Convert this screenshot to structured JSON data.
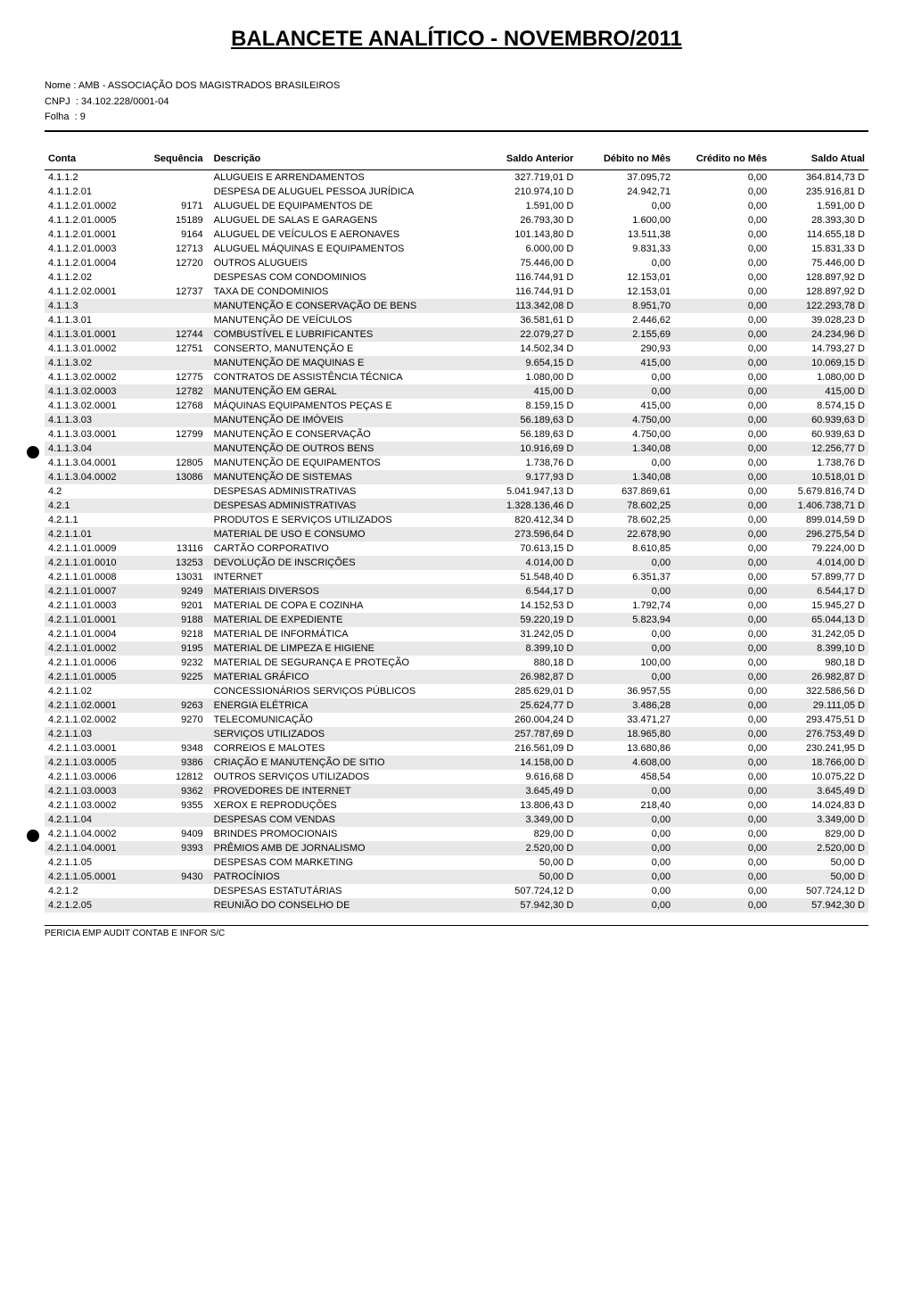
{
  "title": "BALANCETE ANALÍTICO - NOVEMBRO/2011",
  "header": {
    "nome_label": "Nome",
    "nome_value": "AMB - ASSOCIAÇÃO DOS MAGISTRADOS BRASILEIROS",
    "cnpj_label": "CNPJ",
    "cnpj_value": "34.102.228/0001-04",
    "folha_label": "Folha",
    "folha_value": "9"
  },
  "columns": {
    "conta": "Conta",
    "sequencia": "Sequência",
    "descricao": "Descrição",
    "saldo_anterior": "Saldo Anterior",
    "debito": "Débito no Mês",
    "credito": "Crédito no Mês",
    "saldo_atual": "Saldo Atual"
  },
  "rows": [
    {
      "conta": "4.1.1.2",
      "seq": "",
      "desc": "ALUGUEIS E ARRENDAMENTOS",
      "sa": "327.719,01 D",
      "deb": "37.095,72",
      "cred": "0,00",
      "sat": "364.814,73 D",
      "shaded": false
    },
    {
      "conta": "4.1.1.2.01",
      "seq": "",
      "desc": "DESPESA DE ALUGUEL PESSOA JURÍDICA",
      "sa": "210.974,10 D",
      "deb": "24.942,71",
      "cred": "0,00",
      "sat": "235.916,81 D",
      "shaded": false
    },
    {
      "conta": "4.1.1.2.01.0002",
      "seq": "9171",
      "desc": "ALUGUEL DE EQUIPAMENTOS DE",
      "sa": "1.591,00 D",
      "deb": "0,00",
      "cred": "0,00",
      "sat": "1.591,00 D",
      "shaded": false
    },
    {
      "conta": "4.1.1.2.01.0005",
      "seq": "15189",
      "desc": "ALUGUEL DE SALAS E GARAGENS",
      "sa": "26.793,30 D",
      "deb": "1.600,00",
      "cred": "0,00",
      "sat": "28.393,30 D",
      "shaded": false
    },
    {
      "conta": "4.1.1.2.01.0001",
      "seq": "9164",
      "desc": "ALUGUEL DE VEÍCULOS E AERONAVES",
      "sa": "101.143,80 D",
      "deb": "13.511,38",
      "cred": "0,00",
      "sat": "114.655,18 D",
      "shaded": false
    },
    {
      "conta": "4.1.1.2.01.0003",
      "seq": "12713",
      "desc": "ALUGUEL MÁQUINAS E EQUIPAMENTOS",
      "sa": "6.000,00 D",
      "deb": "9.831,33",
      "cred": "0,00",
      "sat": "15.831,33 D",
      "shaded": false
    },
    {
      "conta": "4.1.1.2.01.0004",
      "seq": "12720",
      "desc": "OUTROS ALUGUEIS",
      "sa": "75.446,00 D",
      "deb": "0,00",
      "cred": "0,00",
      "sat": "75.446,00 D",
      "shaded": false
    },
    {
      "conta": "4.1.1.2.02",
      "seq": "",
      "desc": "DESPESAS COM CONDOMINIOS",
      "sa": "116.744,91 D",
      "deb": "12.153,01",
      "cred": "0,00",
      "sat": "128.897,92 D",
      "shaded": false
    },
    {
      "conta": "4.1.1.2.02.0001",
      "seq": "12737",
      "desc": "TAXA DE CONDOMINIOS",
      "sa": "116.744,91 D",
      "deb": "12.153,01",
      "cred": "0,00",
      "sat": "128.897,92 D",
      "shaded": false
    },
    {
      "conta": "4.1.1.3",
      "seq": "",
      "desc": "MANUTENÇÃO E CONSERVAÇÃO DE BENS",
      "sa": "113.342,08 D",
      "deb": "8.951,70",
      "cred": "0,00",
      "sat": "122.293,78 D",
      "shaded": true
    },
    {
      "conta": "4.1.1.3.01",
      "seq": "",
      "desc": "MANUTENÇÃO DE VEÍCULOS",
      "sa": "36.581,61 D",
      "deb": "2.446,62",
      "cred": "0,00",
      "sat": "39.028,23 D",
      "shaded": false
    },
    {
      "conta": "4.1.1.3.01.0001",
      "seq": "12744",
      "desc": "COMBUSTÍVEL E LUBRIFICANTES",
      "sa": "22.079,27 D",
      "deb": "2.155,69",
      "cred": "0,00",
      "sat": "24.234,96 D",
      "shaded": true
    },
    {
      "conta": "4.1.1.3.01.0002",
      "seq": "12751",
      "desc": "CONSERTO, MANUTENÇÃO E",
      "sa": "14.502,34 D",
      "deb": "290,93",
      "cred": "0,00",
      "sat": "14.793,27 D",
      "shaded": false
    },
    {
      "conta": "4.1.1.3.02",
      "seq": "",
      "desc": "MANUTENÇÃO DE MAQUINAS E",
      "sa": "9.654,15 D",
      "deb": "415,00",
      "cred": "0,00",
      "sat": "10.069,15 D",
      "shaded": true
    },
    {
      "conta": "4.1.1.3.02.0002",
      "seq": "12775",
      "desc": "CONTRATOS DE ASSISTÊNCIA TÉCNICA",
      "sa": "1.080,00 D",
      "deb": "0,00",
      "cred": "0,00",
      "sat": "1.080,00 D",
      "shaded": false
    },
    {
      "conta": "4.1.1.3.02.0003",
      "seq": "12782",
      "desc": "MANUTENÇÃO EM GERAL",
      "sa": "415,00 D",
      "deb": "0,00",
      "cred": "0,00",
      "sat": "415,00 D",
      "shaded": true
    },
    {
      "conta": "4.1.1.3.02.0001",
      "seq": "12768",
      "desc": "MÁQUINAS EQUIPAMENTOS PEÇAS E",
      "sa": "8.159,15 D",
      "deb": "415,00",
      "cred": "0,00",
      "sat": "8.574,15 D",
      "shaded": false
    },
    {
      "conta": "4.1.1.3.03",
      "seq": "",
      "desc": "MANUTENÇÃO DE IMÓVEIS",
      "sa": "56.189,63 D",
      "deb": "4.750,00",
      "cred": "0,00",
      "sat": "60.939,63 D",
      "shaded": true
    },
    {
      "conta": "4.1.1.3.03.0001",
      "seq": "12799",
      "desc": "MANUTENÇÃO E CONSERVAÇÃO",
      "sa": "56.189,63 D",
      "deb": "4.750,00",
      "cred": "0,00",
      "sat": "60.939,63 D",
      "shaded": false
    },
    {
      "conta": "4.1.1.3.04",
      "seq": "",
      "desc": "MANUTENÇÃO DE OUTROS BENS",
      "sa": "10.916,69 D",
      "deb": "1.340,08",
      "cred": "0,00",
      "sat": "12.256,77 D",
      "shaded": true
    },
    {
      "conta": "4.1.1.3.04.0001",
      "seq": "12805",
      "desc": "MANUTENÇÃO DE EQUIPAMENTOS",
      "sa": "1.738,76 D",
      "deb": "0,00",
      "cred": "0,00",
      "sat": "1.738,76 D",
      "shaded": false
    },
    {
      "conta": "4.1.1.3.04.0002",
      "seq": "13086",
      "desc": "MANUTENÇÃO DE SISTEMAS",
      "sa": "9.177,93 D",
      "deb": "1.340,08",
      "cred": "0,00",
      "sat": "10.518,01 D",
      "shaded": true
    },
    {
      "conta": "4.2",
      "seq": "",
      "desc": "DESPESAS ADMINISTRATIVAS",
      "sa": "5.041.947,13 D",
      "deb": "637.869,61",
      "cred": "0,00",
      "sat": "5.679.816,74 D",
      "shaded": false
    },
    {
      "conta": "4.2.1",
      "seq": "",
      "desc": "DESPESAS ADMINISTRATIVAS",
      "sa": "1.328.136,46 D",
      "deb": "78.602,25",
      "cred": "0,00",
      "sat": "1.406.738,71 D",
      "shaded": true
    },
    {
      "conta": "4.2.1.1",
      "seq": "",
      "desc": "PRODUTOS E SERVIÇOS UTILIZADOS",
      "sa": "820.412,34 D",
      "deb": "78.602,25",
      "cred": "0,00",
      "sat": "899.014,59 D",
      "shaded": false
    },
    {
      "conta": "4.2.1.1.01",
      "seq": "",
      "desc": "MATERIAL DE USO E CONSUMO",
      "sa": "273.596,64 D",
      "deb": "22.678,90",
      "cred": "0,00",
      "sat": "296.275,54 D",
      "shaded": true
    },
    {
      "conta": "4.2.1.1.01.0009",
      "seq": "13116",
      "desc": "CARTÃO CORPORATIVO",
      "sa": "70.613,15 D",
      "deb": "8.610,85",
      "cred": "0,00",
      "sat": "79.224,00 D",
      "shaded": false
    },
    {
      "conta": "4.2.1.1.01.0010",
      "seq": "13253",
      "desc": "DEVOLUÇÃO DE INSCRIÇÕES",
      "sa": "4.014,00 D",
      "deb": "0,00",
      "cred": "0,00",
      "sat": "4.014,00 D",
      "shaded": true
    },
    {
      "conta": "4.2.1.1.01.0008",
      "seq": "13031",
      "desc": "INTERNET",
      "sa": "51.548,40 D",
      "deb": "6.351,37",
      "cred": "0,00",
      "sat": "57.899,77 D",
      "shaded": false
    },
    {
      "conta": "4.2.1.1.01.0007",
      "seq": "9249",
      "desc": "MATERIAIS DIVERSOS",
      "sa": "6.544,17 D",
      "deb": "0,00",
      "cred": "0,00",
      "sat": "6.544,17 D",
      "shaded": true
    },
    {
      "conta": "4.2.1.1.01.0003",
      "seq": "9201",
      "desc": "MATERIAL DE COPA E COZINHA",
      "sa": "14.152,53 D",
      "deb": "1.792,74",
      "cred": "0,00",
      "sat": "15.945,27 D",
      "shaded": false
    },
    {
      "conta": "4.2.1.1.01.0001",
      "seq": "9188",
      "desc": "MATERIAL DE EXPEDIENTE",
      "sa": "59.220,19 D",
      "deb": "5.823,94",
      "cred": "0,00",
      "sat": "65.044,13 D",
      "shaded": true
    },
    {
      "conta": "4.2.1.1.01.0004",
      "seq": "9218",
      "desc": "MATERIAL DE INFORMÁTICA",
      "sa": "31.242,05 D",
      "deb": "0,00",
      "cred": "0,00",
      "sat": "31.242,05 D",
      "shaded": false
    },
    {
      "conta": "4.2.1.1.01.0002",
      "seq": "9195",
      "desc": "MATERIAL DE LIMPEZA E HIGIENE",
      "sa": "8.399,10 D",
      "deb": "0,00",
      "cred": "0,00",
      "sat": "8.399,10 D",
      "shaded": true
    },
    {
      "conta": "4.2.1.1.01.0006",
      "seq": "9232",
      "desc": "MATERIAL DE SEGURANÇA E PROTEÇÃO",
      "sa": "880,18 D",
      "deb": "100,00",
      "cred": "0,00",
      "sat": "980,18 D",
      "shaded": false
    },
    {
      "conta": "4.2.1.1.01.0005",
      "seq": "9225",
      "desc": "MATERIAL GRÁFICO",
      "sa": "26.982,87 D",
      "deb": "0,00",
      "cred": "0,00",
      "sat": "26.982,87 D",
      "shaded": true
    },
    {
      "conta": "4.2.1.1.02",
      "seq": "",
      "desc": "CONCESSIONÁRIOS SERVIÇOS PÚBLICOS",
      "sa": "285.629,01 D",
      "deb": "36.957,55",
      "cred": "0,00",
      "sat": "322.586,56 D",
      "shaded": false
    },
    {
      "conta": "4.2.1.1.02.0001",
      "seq": "9263",
      "desc": "ENERGIA ELÉTRICA",
      "sa": "25.624,77 D",
      "deb": "3.486,28",
      "cred": "0,00",
      "sat": "29.111,05 D",
      "shaded": true
    },
    {
      "conta": "4.2.1.1.02.0002",
      "seq": "9270",
      "desc": "TELECOMUNICAÇÃO",
      "sa": "260.004,24 D",
      "deb": "33.471,27",
      "cred": "0,00",
      "sat": "293.475,51 D",
      "shaded": false
    },
    {
      "conta": "4.2.1.1.03",
      "seq": "",
      "desc": "SERVIÇOS UTILIZADOS",
      "sa": "257.787,69 D",
      "deb": "18.965,80",
      "cred": "0,00",
      "sat": "276.753,49 D",
      "shaded": true
    },
    {
      "conta": "4.2.1.1.03.0001",
      "seq": "9348",
      "desc": "CORREIOS E MALOTES",
      "sa": "216.561,09 D",
      "deb": "13.680,86",
      "cred": "0,00",
      "sat": "230.241,95 D",
      "shaded": false
    },
    {
      "conta": "4.2.1.1.03.0005",
      "seq": "9386",
      "desc": "CRIAÇÃO E MANUTENÇÃO DE SITIO",
      "sa": "14.158,00 D",
      "deb": "4.608,00",
      "cred": "0,00",
      "sat": "18.766,00 D",
      "shaded": true
    },
    {
      "conta": "4.2.1.1.03.0006",
      "seq": "12812",
      "desc": "OUTROS SERVIÇOS UTILIZADOS",
      "sa": "9.616,68 D",
      "deb": "458,54",
      "cred": "0,00",
      "sat": "10.075,22 D",
      "shaded": false
    },
    {
      "conta": "4.2.1.1.03.0003",
      "seq": "9362",
      "desc": "PROVEDORES DE INTERNET",
      "sa": "3.645,49 D",
      "deb": "0,00",
      "cred": "0,00",
      "sat": "3.645,49 D",
      "shaded": true
    },
    {
      "conta": "4.2.1.1.03.0002",
      "seq": "9355",
      "desc": "XEROX E REPRODUÇÕES",
      "sa": "13.806,43 D",
      "deb": "218,40",
      "cred": "0,00",
      "sat": "14.024,83 D",
      "shaded": false
    },
    {
      "conta": "4.2.1.1.04",
      "seq": "",
      "desc": "DESPESAS COM VENDAS",
      "sa": "3.349,00 D",
      "deb": "0,00",
      "cred": "0,00",
      "sat": "3.349,00 D",
      "shaded": true
    },
    {
      "conta": "4.2.1.1.04.0002",
      "seq": "9409",
      "desc": "BRINDES PROMOCIONAIS",
      "sa": "829,00 D",
      "deb": "0,00",
      "cred": "0,00",
      "sat": "829,00 D",
      "shaded": false
    },
    {
      "conta": "4.2.1.1.04.0001",
      "seq": "9393",
      "desc": "PRÊMIOS AMB DE JORNALISMO",
      "sa": "2.520,00 D",
      "deb": "0,00",
      "cred": "0,00",
      "sat": "2.520,00 D",
      "shaded": true
    },
    {
      "conta": "4.2.1.1.05",
      "seq": "",
      "desc": "DESPESAS COM MARKETING",
      "sa": "50,00 D",
      "deb": "0,00",
      "cred": "0,00",
      "sat": "50,00 D",
      "shaded": false
    },
    {
      "conta": "4.2.1.1.05.0001",
      "seq": "9430",
      "desc": "PATROCÍNIOS",
      "sa": "50,00 D",
      "deb": "0,00",
      "cred": "0,00",
      "sat": "50,00 D",
      "shaded": true
    },
    {
      "conta": "4.2.1.2",
      "seq": "",
      "desc": "DESPESAS ESTATUTÁRIAS",
      "sa": "507.724,12 D",
      "deb": "0,00",
      "cred": "0,00",
      "sat": "507.724,12 D",
      "shaded": false
    },
    {
      "conta": "4.2.1.2.05",
      "seq": "",
      "desc": "REUNIÃO DO CONSELHO DE",
      "sa": "57.942,30 D",
      "deb": "0,00",
      "cred": "0,00",
      "sat": "57.942,30 D",
      "shaded": true
    }
  ],
  "footer": "PERICIA EMP AUDIT CONTAB E INFOR S/C",
  "style": {
    "shaded_bg": "#e8e8e8",
    "page_bg": "#ffffff",
    "text_color": "#000000"
  }
}
